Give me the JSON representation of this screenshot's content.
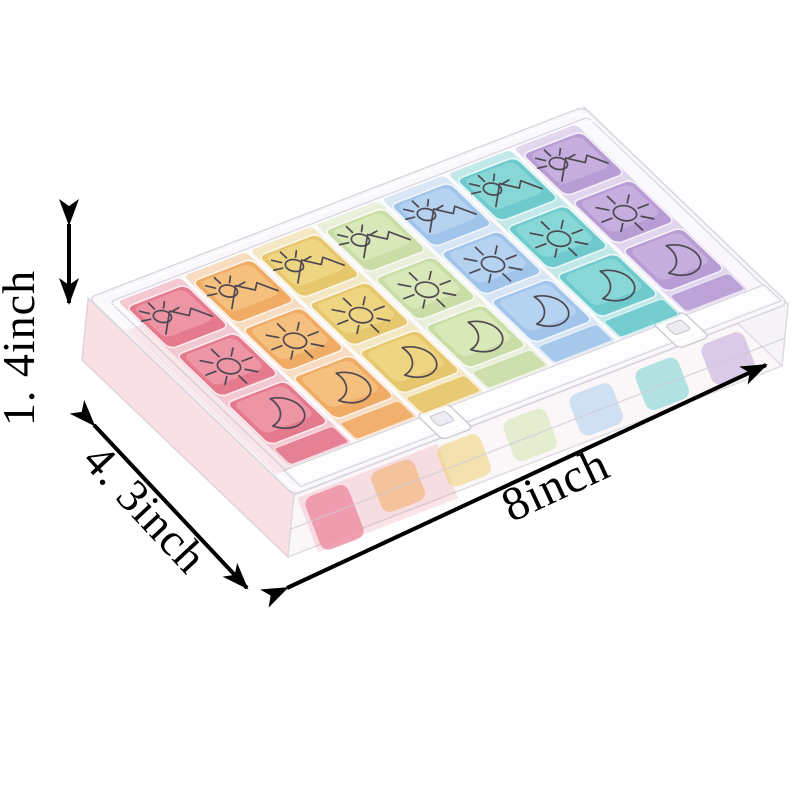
{
  "figure": {
    "type": "product-photo",
    "subject": "rainbow weekly pill organizer box, transparent case, seven color columns with sunrise, sun and moon lid icons",
    "background": "#ffffff"
  },
  "annotations": {
    "height": {
      "label": "1. 4inch"
    },
    "depth": {
      "label": "4. 3inch"
    },
    "width": {
      "label": "8inch"
    },
    "arrow_color": "#000000",
    "text_color": "#000000"
  },
  "organizer": {
    "kind": "7-day pill organizer",
    "case_tint": "#faf8fb",
    "icon_color": "#4e4852",
    "days": [
      {
        "name": "day-1-pink",
        "color": "#e2677f",
        "light": "#f4aab8",
        "body": "#ee8da1"
      },
      {
        "name": "day-2-orange",
        "color": "#efa04f",
        "light": "#f9cf92",
        "body": "#f3ad63"
      },
      {
        "name": "day-3-yellow",
        "color": "#e5c058",
        "light": "#f4e094",
        "body": "#edd174"
      },
      {
        "name": "day-4-green",
        "color": "#c4d99a",
        "light": "#e3f1c6",
        "body": "#d4e6ae"
      },
      {
        "name": "day-5-blue",
        "color": "#94bde8",
        "light": "#c8dff6",
        "body": "#abcdef"
      },
      {
        "name": "day-6-teal",
        "color": "#59c3c6",
        "light": "#9ae2dc",
        "body": "#74d2ce"
      },
      {
        "name": "day-7-purple",
        "color": "#af90d0",
        "light": "#d2bce6",
        "body": "#c0a5db"
      }
    ],
    "time_slots": [
      {
        "name": "morning",
        "icon": "sunrise-icon"
      },
      {
        "name": "noon",
        "icon": "sun-icon"
      },
      {
        "name": "night",
        "icon": "moon-icon"
      }
    ]
  }
}
